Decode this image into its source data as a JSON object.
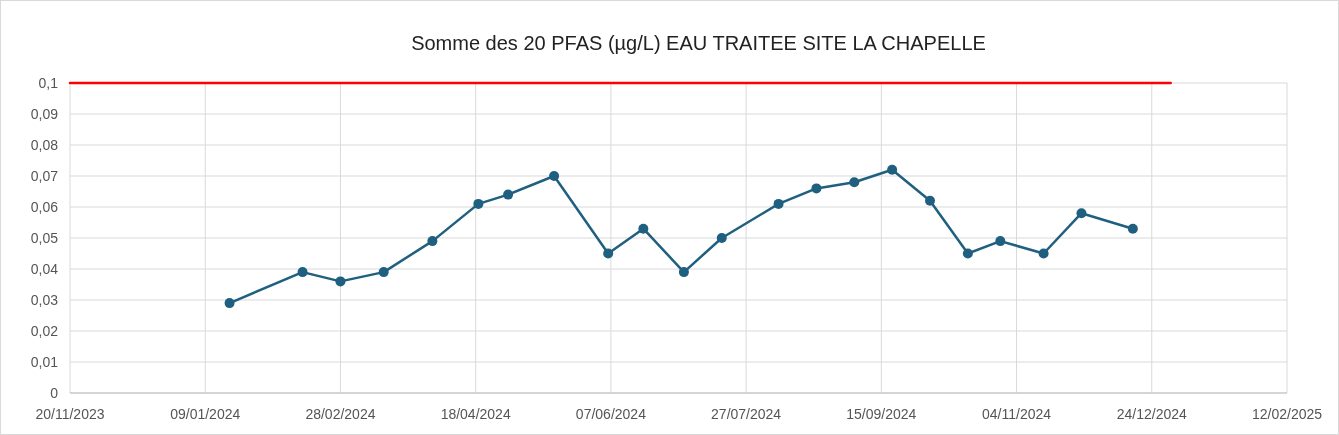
{
  "chart_data": {
    "type": "line",
    "title": "Somme des 20 PFAS (µg/L) EAU TRAITEE SITE LA CHAPELLE",
    "xlim": [
      "2023-11-20",
      "2025-02-12"
    ],
    "xticks": [
      {
        "value": "2023-11-20",
        "label": "20/11/2023"
      },
      {
        "value": "2024-01-09",
        "label": "09/01/2024"
      },
      {
        "value": "2024-02-28",
        "label": "28/02/2024"
      },
      {
        "value": "2024-04-18",
        "label": "18/04/2024"
      },
      {
        "value": "2024-06-07",
        "label": "07/06/2024"
      },
      {
        "value": "2024-07-27",
        "label": "27/07/2024"
      },
      {
        "value": "2024-09-15",
        "label": "15/09/2024"
      },
      {
        "value": "2024-11-04",
        "label": "04/11/2024"
      },
      {
        "value": "2024-12-24",
        "label": "24/12/2024"
      },
      {
        "value": "2025-02-12",
        "label": "12/02/2025"
      }
    ],
    "ylim": [
      0,
      0.1
    ],
    "yticks": [
      {
        "value": 0,
        "label": "0"
      },
      {
        "value": 0.01,
        "label": "0,01"
      },
      {
        "value": 0.02,
        "label": "0,02"
      },
      {
        "value": 0.03,
        "label": "0,03"
      },
      {
        "value": 0.04,
        "label": "0,04"
      },
      {
        "value": 0.05,
        "label": "0,05"
      },
      {
        "value": 0.06,
        "label": "0,06"
      },
      {
        "value": 0.07,
        "label": "0,07"
      },
      {
        "value": 0.08,
        "label": "0,08"
      },
      {
        "value": 0.09,
        "label": "0,09"
      },
      {
        "value": 0.1,
        "label": "0,1"
      }
    ],
    "grid": true,
    "series": [
      {
        "color": "#ff0000",
        "marker": "none",
        "x": [
          "2023-11-20",
          "2024-12-31"
        ],
        "values": [
          0.1,
          0.1
        ]
      },
      {
        "color": "#1f5f7f",
        "marker": "circle",
        "x": [
          "2024-01-18",
          "2024-02-14",
          "2024-02-28",
          "2024-03-15",
          "2024-04-02",
          "2024-04-19",
          "2024-04-30",
          "2024-05-17",
          "2024-06-06",
          "2024-06-19",
          "2024-07-04",
          "2024-07-18",
          "2024-08-08",
          "2024-08-22",
          "2024-09-05",
          "2024-09-19",
          "2024-10-03",
          "2024-10-17",
          "2024-10-29",
          "2024-11-14",
          "2024-11-28",
          "2024-12-17"
        ],
        "values": [
          0.029,
          0.039,
          0.036,
          0.039,
          0.049,
          0.061,
          0.064,
          0.07,
          0.045,
          0.053,
          0.039,
          0.05,
          0.061,
          0.066,
          0.068,
          0.072,
          0.062,
          0.045,
          0.049,
          0.045,
          0.058,
          0.053
        ]
      }
    ]
  }
}
